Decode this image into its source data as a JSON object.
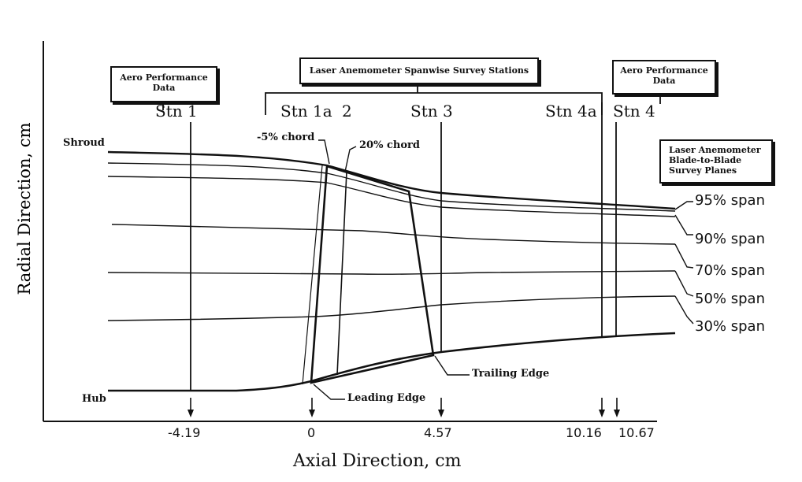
{
  "boxes": {
    "aero_left": [
      "Aero Performance",
      "Data"
    ],
    "laser_spanwise": "Laser Anemometer Spanwise Survey Stations",
    "aero_right": [
      "Aero Performance",
      "Data"
    ],
    "laser_b2b": [
      "Laser Anemometer",
      "Blade-to-Blade",
      "Survey Planes"
    ]
  },
  "stations": [
    "Stn 1",
    "Stn 1a",
    "2",
    "Stn 3",
    "Stn 4a",
    "Stn 4"
  ],
  "chord_labels": [
    "-5% chord",
    "20% chord"
  ],
  "wall_labels": {
    "shroud": "Shroud",
    "hub": "Hub"
  },
  "edge_labels": {
    "leading": "Leading Edge",
    "trailing": "Trailing Edge"
  },
  "span_labels": [
    "95% span",
    "90% span",
    "70% span",
    "50% span",
    "30% span"
  ],
  "axial_ticks": [
    "-4.19",
    "0",
    "4.57",
    "10.16",
    "10.67"
  ],
  "axis_labels": {
    "x": "Axial  Direction, cm",
    "y": "Radial Direction, cm"
  }
}
